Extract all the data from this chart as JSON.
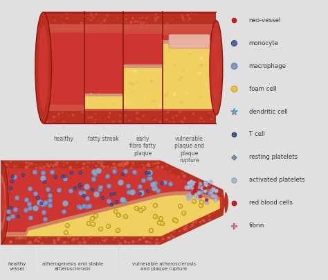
{
  "background_color": "#e0e0e0",
  "top_labels": [
    "healthy",
    "fatty streak",
    "early\nfibro fatty\nplaque",
    "vulnerable\nplaque and\nplaque\nrupture"
  ],
  "bottom_labels": [
    "healthy\nvessel",
    "atherogenesis and stable\natherosclerosis",
    "vulnerable atherosclerosis\nand plaque rupture"
  ],
  "legend_items": [
    {
      "label": "neo-vessel",
      "fc": "#cc2222",
      "ec": "#aa1111",
      "marker": "o",
      "ms": 7
    },
    {
      "label": "monocyte",
      "fc": "#5566aa",
      "ec": "#334488",
      "marker": "o",
      "ms": 9
    },
    {
      "label": "macrophage",
      "fc": "#8899bb",
      "ec": "#6677aa",
      "marker": "o",
      "ms": 10
    },
    {
      "label": "foam cell",
      "fc": "#e8c840",
      "ec": "#c0a020",
      "marker": "o",
      "ms": 10
    },
    {
      "label": "dendritic cell",
      "fc": "#88aacc",
      "ec": "#5588aa",
      "marker": "*",
      "ms": 12
    },
    {
      "label": "T cell",
      "fc": "#445599",
      "ec": "#223377",
      "marker": "o",
      "ms": 7
    },
    {
      "label": "resting platelets",
      "fc": "#7799aa",
      "ec": "#556688",
      "marker": "D",
      "ms": 5
    },
    {
      "label": "activated platelets",
      "fc": "#aabbcc",
      "ec": "#8899aa",
      "marker": "o",
      "ms": 8
    },
    {
      "label": "red blood cells",
      "fc": "#cc2222",
      "ec": "#aa0000",
      "marker": "o",
      "ms": 7
    },
    {
      "label": "fibrin",
      "fc": "#dd8899",
      "ec": "#bb6677",
      "marker": "P",
      "ms": 8
    }
  ],
  "wall_dark": "#b83020",
  "wall_mid": "#cc4030",
  "wall_light": "#e06040",
  "lumen_color": "#cc3530",
  "plaque_color": "#f0d060",
  "plaque_edge": "#d4b020",
  "tissue_color": "#e8a070"
}
